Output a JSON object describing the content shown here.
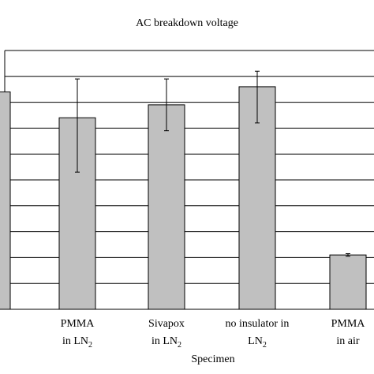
{
  "chart_data": {
    "type": "bar",
    "title": "AC breakdown voltage",
    "xlabel": "Specimen",
    "ylabel": "",
    "ylim": [
      0,
      10
    ],
    "grid": true,
    "bar_color": "#c0c0c0",
    "categories": [
      {
        "line1": "",
        "line2": "",
        "sub": ""
      },
      {
        "line1": "PMMA",
        "line2": "in LN",
        "sub": "2"
      },
      {
        "line1": "Sivapox",
        "line2": "in LN",
        "sub": "2"
      },
      {
        "line1": "no insulator in",
        "line2": "LN",
        "sub": "2"
      },
      {
        "line1": "PMMA",
        "line2": "in air",
        "sub": ""
      }
    ],
    "values": [
      8.4,
      7.4,
      7.9,
      8.6,
      2.1
    ],
    "error_low": [
      null,
      5.3,
      6.9,
      7.2,
      2.05
    ],
    "error_high": [
      null,
      8.9,
      8.9,
      9.2,
      2.15
    ]
  }
}
